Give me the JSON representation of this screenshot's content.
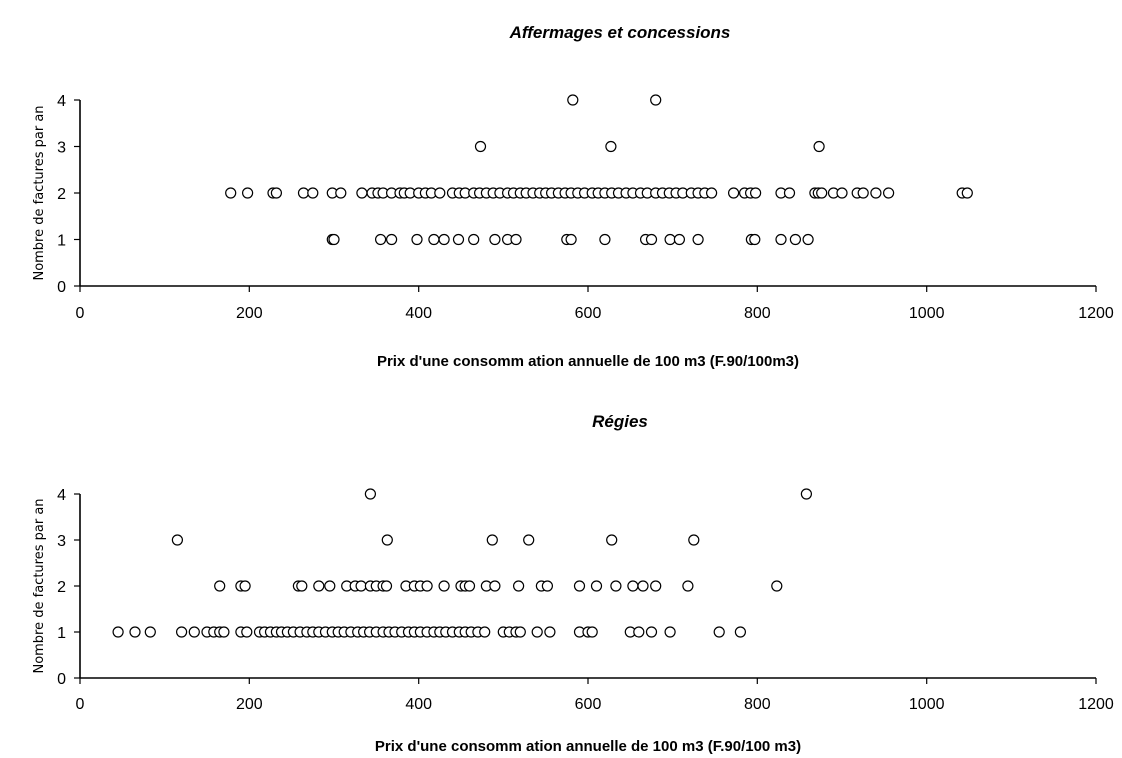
{
  "chart_data": [
    {
      "type": "scatter",
      "title": "Affermages et concessions",
      "xlabel": "Prix d'une consomm ation annuelle de 100 m3 (F.90/100m3)",
      "ylabel": "Nombre de factures par an",
      "xlim": [
        0,
        1200
      ],
      "ylim": [
        0,
        4
      ],
      "xticks": [
        "0",
        "200",
        "400",
        "600",
        "800",
        "1000",
        "1200"
      ],
      "yticks": [
        "0",
        "1",
        "2",
        "3",
        "4"
      ],
      "grid": false,
      "points": [
        {
          "x": 298,
          "y": 1
        },
        {
          "x": 300,
          "y": 1
        },
        {
          "x": 355,
          "y": 1
        },
        {
          "x": 368,
          "y": 1
        },
        {
          "x": 398,
          "y": 1
        },
        {
          "x": 418,
          "y": 1
        },
        {
          "x": 430,
          "y": 1
        },
        {
          "x": 447,
          "y": 1
        },
        {
          "x": 465,
          "y": 1
        },
        {
          "x": 490,
          "y": 1
        },
        {
          "x": 505,
          "y": 1
        },
        {
          "x": 515,
          "y": 1
        },
        {
          "x": 575,
          "y": 1
        },
        {
          "x": 580,
          "y": 1
        },
        {
          "x": 620,
          "y": 1
        },
        {
          "x": 668,
          "y": 1
        },
        {
          "x": 675,
          "y": 1
        },
        {
          "x": 697,
          "y": 1
        },
        {
          "x": 708,
          "y": 1
        },
        {
          "x": 730,
          "y": 1
        },
        {
          "x": 793,
          "y": 1
        },
        {
          "x": 797,
          "y": 1
        },
        {
          "x": 828,
          "y": 1
        },
        {
          "x": 845,
          "y": 1
        },
        {
          "x": 860,
          "y": 1
        },
        {
          "x": 178,
          "y": 2
        },
        {
          "x": 198,
          "y": 2
        },
        {
          "x": 228,
          "y": 2
        },
        {
          "x": 232,
          "y": 2
        },
        {
          "x": 264,
          "y": 2
        },
        {
          "x": 275,
          "y": 2
        },
        {
          "x": 298,
          "y": 2
        },
        {
          "x": 308,
          "y": 2
        },
        {
          "x": 333,
          "y": 2
        },
        {
          "x": 345,
          "y": 2
        },
        {
          "x": 352,
          "y": 2
        },
        {
          "x": 358,
          "y": 2
        },
        {
          "x": 368,
          "y": 2
        },
        {
          "x": 378,
          "y": 2
        },
        {
          "x": 383,
          "y": 2
        },
        {
          "x": 390,
          "y": 2
        },
        {
          "x": 400,
          "y": 2
        },
        {
          "x": 408,
          "y": 2
        },
        {
          "x": 415,
          "y": 2
        },
        {
          "x": 425,
          "y": 2
        },
        {
          "x": 440,
          "y": 2
        },
        {
          "x": 448,
          "y": 2
        },
        {
          "x": 455,
          "y": 2
        },
        {
          "x": 465,
          "y": 2
        },
        {
          "x": 472,
          "y": 2
        },
        {
          "x": 480,
          "y": 2
        },
        {
          "x": 488,
          "y": 2
        },
        {
          "x": 496,
          "y": 2
        },
        {
          "x": 505,
          "y": 2
        },
        {
          "x": 512,
          "y": 2
        },
        {
          "x": 520,
          "y": 2
        },
        {
          "x": 527,
          "y": 2
        },
        {
          "x": 535,
          "y": 2
        },
        {
          "x": 543,
          "y": 2
        },
        {
          "x": 550,
          "y": 2
        },
        {
          "x": 557,
          "y": 2
        },
        {
          "x": 565,
          "y": 2
        },
        {
          "x": 573,
          "y": 2
        },
        {
          "x": 580,
          "y": 2
        },
        {
          "x": 588,
          "y": 2
        },
        {
          "x": 596,
          "y": 2
        },
        {
          "x": 605,
          "y": 2
        },
        {
          "x": 612,
          "y": 2
        },
        {
          "x": 620,
          "y": 2
        },
        {
          "x": 628,
          "y": 2
        },
        {
          "x": 636,
          "y": 2
        },
        {
          "x": 645,
          "y": 2
        },
        {
          "x": 653,
          "y": 2
        },
        {
          "x": 662,
          "y": 2
        },
        {
          "x": 670,
          "y": 2
        },
        {
          "x": 680,
          "y": 2
        },
        {
          "x": 688,
          "y": 2
        },
        {
          "x": 696,
          "y": 2
        },
        {
          "x": 704,
          "y": 2
        },
        {
          "x": 712,
          "y": 2
        },
        {
          "x": 722,
          "y": 2
        },
        {
          "x": 730,
          "y": 2
        },
        {
          "x": 738,
          "y": 2
        },
        {
          "x": 746,
          "y": 2
        },
        {
          "x": 772,
          "y": 2
        },
        {
          "x": 785,
          "y": 2
        },
        {
          "x": 792,
          "y": 2
        },
        {
          "x": 798,
          "y": 2
        },
        {
          "x": 828,
          "y": 2
        },
        {
          "x": 838,
          "y": 2
        },
        {
          "x": 868,
          "y": 2
        },
        {
          "x": 872,
          "y": 2
        },
        {
          "x": 876,
          "y": 2
        },
        {
          "x": 890,
          "y": 2
        },
        {
          "x": 900,
          "y": 2
        },
        {
          "x": 918,
          "y": 2
        },
        {
          "x": 925,
          "y": 2
        },
        {
          "x": 940,
          "y": 2
        },
        {
          "x": 955,
          "y": 2
        },
        {
          "x": 1042,
          "y": 2
        },
        {
          "x": 1048,
          "y": 2
        },
        {
          "x": 473,
          "y": 3
        },
        {
          "x": 627,
          "y": 3
        },
        {
          "x": 873,
          "y": 3
        },
        {
          "x": 582,
          "y": 4
        },
        {
          "x": 680,
          "y": 4
        }
      ]
    },
    {
      "type": "scatter",
      "title": "Régies",
      "xlabel": "Prix d'une consomm ation annuelle de 100 m3 (F.90/100 m3)",
      "ylabel": "Nombre de factures par an",
      "xlim": [
        0,
        1200
      ],
      "ylim": [
        0,
        4
      ],
      "xticks": [
        "0",
        "200",
        "400",
        "600",
        "800",
        "1000",
        "1200"
      ],
      "yticks": [
        "0",
        "1",
        "2",
        "3",
        "4"
      ],
      "grid": false,
      "points": [
        {
          "x": 45,
          "y": 1
        },
        {
          "x": 65,
          "y": 1
        },
        {
          "x": 83,
          "y": 1
        },
        {
          "x": 120,
          "y": 1
        },
        {
          "x": 135,
          "y": 1
        },
        {
          "x": 150,
          "y": 1
        },
        {
          "x": 158,
          "y": 1
        },
        {
          "x": 165,
          "y": 1
        },
        {
          "x": 170,
          "y": 1
        },
        {
          "x": 190,
          "y": 1
        },
        {
          "x": 197,
          "y": 1
        },
        {
          "x": 212,
          "y": 1
        },
        {
          "x": 218,
          "y": 1
        },
        {
          "x": 225,
          "y": 1
        },
        {
          "x": 232,
          "y": 1
        },
        {
          "x": 238,
          "y": 1
        },
        {
          "x": 245,
          "y": 1
        },
        {
          "x": 252,
          "y": 1
        },
        {
          "x": 260,
          "y": 1
        },
        {
          "x": 268,
          "y": 1
        },
        {
          "x": 275,
          "y": 1
        },
        {
          "x": 282,
          "y": 1
        },
        {
          "x": 290,
          "y": 1
        },
        {
          "x": 298,
          "y": 1
        },
        {
          "x": 305,
          "y": 1
        },
        {
          "x": 312,
          "y": 1
        },
        {
          "x": 320,
          "y": 1
        },
        {
          "x": 328,
          "y": 1
        },
        {
          "x": 335,
          "y": 1
        },
        {
          "x": 342,
          "y": 1
        },
        {
          "x": 350,
          "y": 1
        },
        {
          "x": 358,
          "y": 1
        },
        {
          "x": 365,
          "y": 1
        },
        {
          "x": 372,
          "y": 1
        },
        {
          "x": 380,
          "y": 1
        },
        {
          "x": 388,
          "y": 1
        },
        {
          "x": 395,
          "y": 1
        },
        {
          "x": 402,
          "y": 1
        },
        {
          "x": 410,
          "y": 1
        },
        {
          "x": 418,
          "y": 1
        },
        {
          "x": 425,
          "y": 1
        },
        {
          "x": 432,
          "y": 1
        },
        {
          "x": 440,
          "y": 1
        },
        {
          "x": 448,
          "y": 1
        },
        {
          "x": 455,
          "y": 1
        },
        {
          "x": 462,
          "y": 1
        },
        {
          "x": 470,
          "y": 1
        },
        {
          "x": 478,
          "y": 1
        },
        {
          "x": 500,
          "y": 1
        },
        {
          "x": 507,
          "y": 1
        },
        {
          "x": 515,
          "y": 1
        },
        {
          "x": 520,
          "y": 1
        },
        {
          "x": 540,
          "y": 1
        },
        {
          "x": 555,
          "y": 1
        },
        {
          "x": 590,
          "y": 1
        },
        {
          "x": 600,
          "y": 1
        },
        {
          "x": 605,
          "y": 1
        },
        {
          "x": 650,
          "y": 1
        },
        {
          "x": 660,
          "y": 1
        },
        {
          "x": 675,
          "y": 1
        },
        {
          "x": 697,
          "y": 1
        },
        {
          "x": 755,
          "y": 1
        },
        {
          "x": 780,
          "y": 1
        },
        {
          "x": 165,
          "y": 2
        },
        {
          "x": 190,
          "y": 2
        },
        {
          "x": 195,
          "y": 2
        },
        {
          "x": 258,
          "y": 2
        },
        {
          "x": 262,
          "y": 2
        },
        {
          "x": 282,
          "y": 2
        },
        {
          "x": 295,
          "y": 2
        },
        {
          "x": 315,
          "y": 2
        },
        {
          "x": 325,
          "y": 2
        },
        {
          "x": 332,
          "y": 2
        },
        {
          "x": 343,
          "y": 2
        },
        {
          "x": 350,
          "y": 2
        },
        {
          "x": 358,
          "y": 2
        },
        {
          "x": 362,
          "y": 2
        },
        {
          "x": 385,
          "y": 2
        },
        {
          "x": 395,
          "y": 2
        },
        {
          "x": 402,
          "y": 2
        },
        {
          "x": 410,
          "y": 2
        },
        {
          "x": 430,
          "y": 2
        },
        {
          "x": 450,
          "y": 2
        },
        {
          "x": 455,
          "y": 2
        },
        {
          "x": 460,
          "y": 2
        },
        {
          "x": 480,
          "y": 2
        },
        {
          "x": 490,
          "y": 2
        },
        {
          "x": 518,
          "y": 2
        },
        {
          "x": 545,
          "y": 2
        },
        {
          "x": 552,
          "y": 2
        },
        {
          "x": 590,
          "y": 2
        },
        {
          "x": 610,
          "y": 2
        },
        {
          "x": 633,
          "y": 2
        },
        {
          "x": 653,
          "y": 2
        },
        {
          "x": 665,
          "y": 2
        },
        {
          "x": 680,
          "y": 2
        },
        {
          "x": 718,
          "y": 2
        },
        {
          "x": 823,
          "y": 2
        },
        {
          "x": 115,
          "y": 3
        },
        {
          "x": 363,
          "y": 3
        },
        {
          "x": 487,
          "y": 3
        },
        {
          "x": 530,
          "y": 3
        },
        {
          "x": 628,
          "y": 3
        },
        {
          "x": 725,
          "y": 3
        },
        {
          "x": 343,
          "y": 4
        },
        {
          "x": 858,
          "y": 4
        }
      ]
    }
  ]
}
